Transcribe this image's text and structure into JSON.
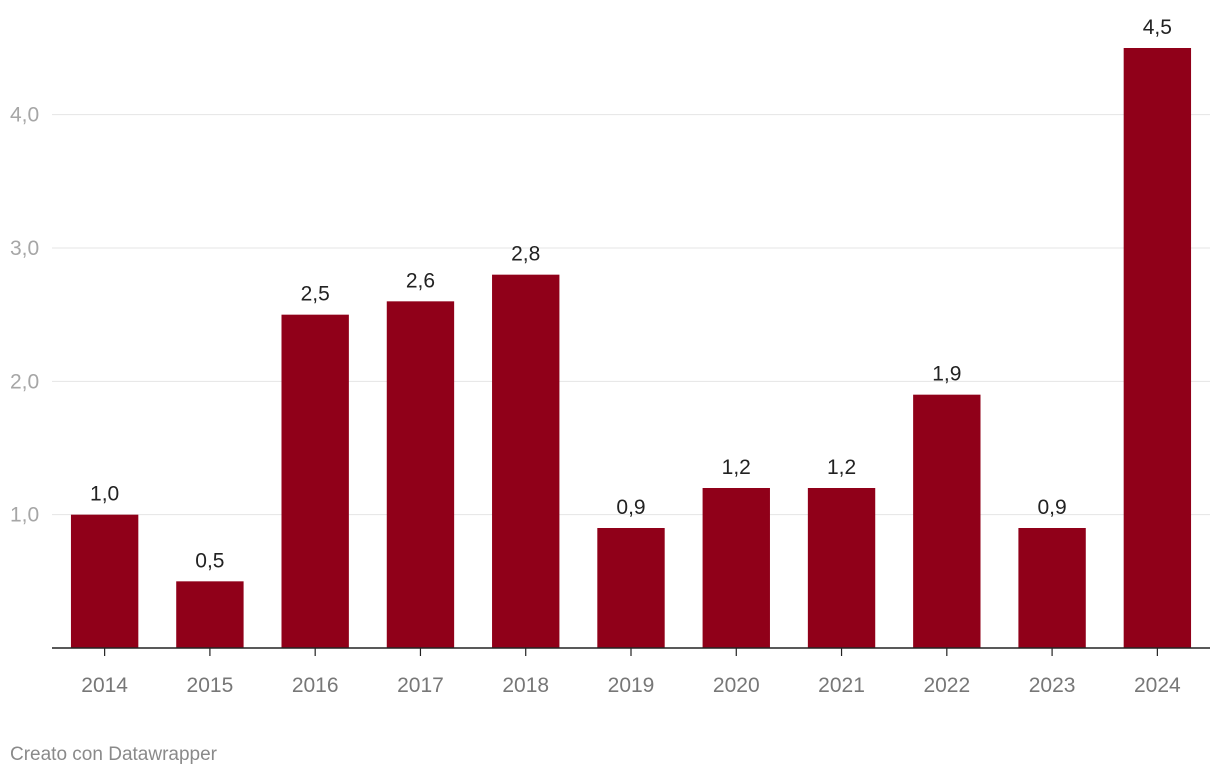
{
  "colors": {
    "bar": "#900019",
    "grid": "#e5e5e5",
    "axis": "#222222"
  },
  "chart_data": {
    "type": "bar",
    "categories": [
      "2014",
      "2015",
      "2016",
      "2017",
      "2018",
      "2019",
      "2020",
      "2021",
      "2022",
      "2023",
      "2024"
    ],
    "values": [
      1.0,
      0.5,
      2.5,
      2.6,
      2.8,
      0.9,
      1.2,
      1.2,
      1.9,
      0.9,
      4.5
    ],
    "value_labels": [
      "1,0",
      "0,5",
      "2,5",
      "2,6",
      "2,8",
      "0,9",
      "1,2",
      "1,2",
      "1,9",
      "0,9",
      "4,5"
    ],
    "ylim": [
      0,
      4.5
    ],
    "yticks": [
      1.0,
      2.0,
      3.0,
      4.0
    ],
    "ytick_labels": [
      "1,0",
      "2,0",
      "3,0",
      "4,0"
    ],
    "grid": true,
    "title": "",
    "xlabel": "",
    "ylabel": ""
  },
  "footer": {
    "credit": "Creato con Datawrapper"
  }
}
